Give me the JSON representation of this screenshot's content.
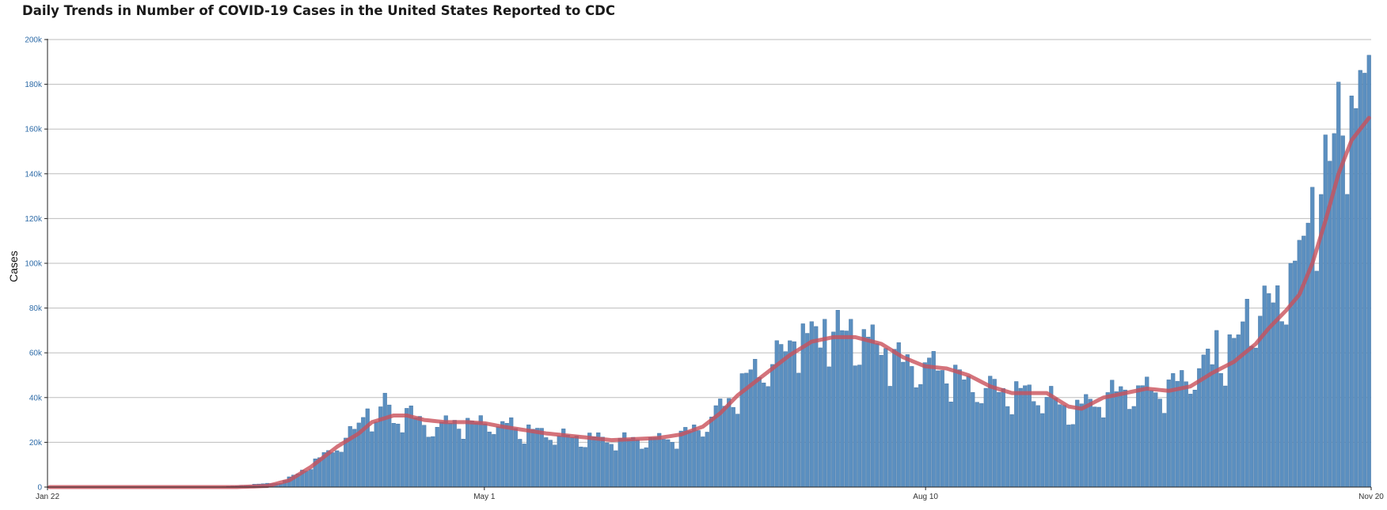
{
  "chart_data": {
    "type": "bar",
    "title": "Daily Trends in Number of COVID-19 Cases in the United States Reported to CDC",
    "xlabel": "",
    "ylabel": "Cases",
    "ylim": [
      0,
      200000
    ],
    "y_ticks": [
      0,
      20000,
      40000,
      60000,
      80000,
      100000,
      120000,
      140000,
      160000,
      180000,
      200000
    ],
    "y_tick_labels": [
      "0",
      "20k",
      "40k",
      "60k",
      "80k",
      "100k",
      "120k",
      "140k",
      "160k",
      "180k",
      "200k"
    ],
    "x_tick_labels": [
      {
        "label": "Jan 22",
        "date": "2020-01-22"
      },
      {
        "label": "May 1",
        "date": "2020-05-01"
      },
      {
        "label": "Aug 10",
        "date": "2020-08-10"
      },
      {
        "label": "Nov 20",
        "date": "2020-11-20"
      }
    ],
    "x_range": [
      "2020-01-22",
      "2020-11-20"
    ],
    "grid": true,
    "colors": {
      "bars": "#5b8fc0",
      "bar_edge": "#3e6f9f",
      "moving_average": "#c9505a",
      "grid": "#bdbdbd",
      "axis": "#222222"
    },
    "series": [
      {
        "type": "bar",
        "x": [
          "2020-01-22",
          "2020-11-20"
        ],
        "keypoints": [
          [
            "2020-01-22",
            0
          ],
          [
            "2020-03-01",
            0
          ],
          [
            "2020-03-15",
            2000
          ],
          [
            "2020-03-19",
            6000
          ],
          [
            "2020-03-22",
            10000
          ],
          [
            "2020-03-25",
            14000
          ],
          [
            "2020-03-28",
            18000
          ],
          [
            "2020-04-01",
            25000
          ],
          [
            "2020-04-04",
            33000
          ],
          [
            "2020-04-06",
            27000
          ],
          [
            "2020-04-08",
            42000
          ],
          [
            "2020-04-10",
            30000
          ],
          [
            "2020-04-13",
            33000
          ],
          [
            "2020-04-17",
            28000
          ],
          [
            "2020-04-20",
            26000
          ],
          [
            "2020-04-24",
            30000
          ],
          [
            "2020-04-28",
            27000
          ],
          [
            "2020-05-01",
            30000
          ],
          [
            "2020-05-05",
            26000
          ],
          [
            "2020-05-10",
            25000
          ],
          [
            "2020-05-15",
            24000
          ],
          [
            "2020-05-20",
            22000
          ],
          [
            "2020-05-25",
            22000
          ],
          [
            "2020-05-30",
            21000
          ],
          [
            "2020-06-05",
            21000
          ],
          [
            "2020-06-10",
            21000
          ],
          [
            "2020-06-15",
            23000
          ],
          [
            "2020-06-20",
            27000
          ],
          [
            "2020-06-24",
            35000
          ],
          [
            "2020-06-28",
            43000
          ],
          [
            "2020-07-02",
            52000
          ],
          [
            "2020-07-06",
            55000
          ],
          [
            "2020-07-10",
            63000
          ],
          [
            "2020-07-15",
            67000
          ],
          [
            "2020-07-20",
            68000
          ],
          [
            "2020-07-25",
            67000
          ],
          [
            "2020-07-31",
            62000
          ],
          [
            "2020-08-05",
            55000
          ],
          [
            "2020-08-10",
            54000
          ],
          [
            "2020-08-15",
            52000
          ],
          [
            "2020-08-20",
            45000
          ],
          [
            "2020-08-25",
            44000
          ],
          [
            "2020-08-30",
            42000
          ],
          [
            "2020-09-03",
            42000
          ],
          [
            "2020-09-07",
            40000
          ],
          [
            "2020-09-12",
            34000
          ],
          [
            "2020-09-15",
            36000
          ],
          [
            "2020-09-20",
            40000
          ],
          [
            "2020-09-25",
            43000
          ],
          [
            "2020-09-30",
            43000
          ],
          [
            "2020-10-05",
            44000
          ],
          [
            "2020-10-10",
            50000
          ],
          [
            "2020-10-15",
            56000
          ],
          [
            "2020-10-20",
            62000
          ],
          [
            "2020-10-25",
            75000
          ],
          [
            "2020-10-28",
            80000
          ],
          [
            "2020-11-01",
            92000
          ],
          [
            "2020-11-04",
            100000
          ],
          [
            "2020-11-07",
            115000
          ],
          [
            "2020-11-10",
            135000
          ],
          [
            "2020-11-13",
            152000
          ],
          [
            "2020-11-16",
            162000
          ],
          [
            "2020-11-20",
            165000
          ]
        ],
        "highlights": [
          [
            "2020-04-08",
            42000
          ],
          [
            "2020-04-04",
            35000
          ],
          [
            "2020-05-07",
            31000
          ],
          [
            "2020-07-18",
            75000
          ],
          [
            "2020-07-24",
            75000
          ],
          [
            "2020-07-11",
            65000
          ],
          [
            "2020-08-01",
            62000
          ],
          [
            "2020-10-16",
            70000
          ],
          [
            "2020-10-23",
            84000
          ],
          [
            "2020-10-30",
            90000
          ],
          [
            "2020-11-02",
            100000
          ],
          [
            "2020-11-06",
            118000
          ],
          [
            "2020-11-07",
            134000
          ],
          [
            "2020-11-12",
            158000
          ],
          [
            "2020-11-13",
            181000
          ],
          [
            "2020-11-14",
            157000
          ],
          [
            "2020-11-19",
            185000
          ],
          [
            "2020-11-20",
            193000
          ]
        ]
      },
      {
        "type": "line",
        "keypoints": [
          [
            "2020-01-22",
            0
          ],
          [
            "2020-03-05",
            0
          ],
          [
            "2020-03-12",
            500
          ],
          [
            "2020-03-17",
            3000
          ],
          [
            "2020-03-22",
            9000
          ],
          [
            "2020-03-28",
            18000
          ],
          [
            "2020-04-02",
            24000
          ],
          [
            "2020-04-05",
            29000
          ],
          [
            "2020-04-10",
            32000
          ],
          [
            "2020-04-13",
            32000
          ],
          [
            "2020-04-17",
            30000
          ],
          [
            "2020-04-22",
            29000
          ],
          [
            "2020-04-27",
            29000
          ],
          [
            "2020-05-01",
            28500
          ],
          [
            "2020-05-05",
            27000
          ],
          [
            "2020-05-10",
            25500
          ],
          [
            "2020-05-15",
            24000
          ],
          [
            "2020-05-20",
            23000
          ],
          [
            "2020-05-25",
            22000
          ],
          [
            "2020-05-30",
            21000
          ],
          [
            "2020-06-05",
            21500
          ],
          [
            "2020-06-10",
            22000
          ],
          [
            "2020-06-15",
            23500
          ],
          [
            "2020-06-20",
            27000
          ],
          [
            "2020-06-24",
            33000
          ],
          [
            "2020-06-28",
            41000
          ],
          [
            "2020-07-02",
            47000
          ],
          [
            "2020-07-06",
            53000
          ],
          [
            "2020-07-10",
            59000
          ],
          [
            "2020-07-15",
            65000
          ],
          [
            "2020-07-20",
            67000
          ],
          [
            "2020-07-25",
            67000
          ],
          [
            "2020-07-31",
            64000
          ],
          [
            "2020-08-05",
            58000
          ],
          [
            "2020-08-10",
            54000
          ],
          [
            "2020-08-15",
            53000
          ],
          [
            "2020-08-20",
            50000
          ],
          [
            "2020-08-25",
            45000
          ],
          [
            "2020-08-30",
            42000
          ],
          [
            "2020-09-03",
            42000
          ],
          [
            "2020-09-07",
            42000
          ],
          [
            "2020-09-12",
            36000
          ],
          [
            "2020-09-15",
            35000
          ],
          [
            "2020-09-20",
            40000
          ],
          [
            "2020-09-25",
            42000
          ],
          [
            "2020-09-30",
            44000
          ],
          [
            "2020-10-05",
            43000
          ],
          [
            "2020-10-10",
            45000
          ],
          [
            "2020-10-15",
            51000
          ],
          [
            "2020-10-20",
            56000
          ],
          [
            "2020-10-25",
            64000
          ],
          [
            "2020-10-28",
            71000
          ],
          [
            "2020-11-01",
            79000
          ],
          [
            "2020-11-04",
            86000
          ],
          [
            "2020-11-07",
            100000
          ],
          [
            "2020-11-10",
            119000
          ],
          [
            "2020-11-13",
            140000
          ],
          [
            "2020-11-16",
            155000
          ],
          [
            "2020-11-20",
            165000
          ]
        ]
      }
    ]
  }
}
